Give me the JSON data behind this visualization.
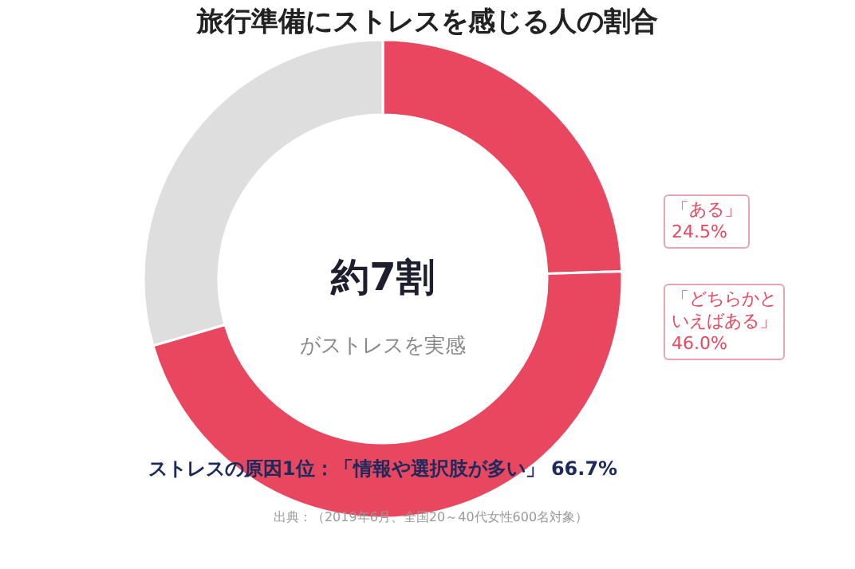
{
  "chart_data": {
    "type": "donut",
    "title": "旅行準備にストレスを感じる人の割合",
    "categories": [
      "「ある」",
      "「どちらかといえばある」",
      null
    ],
    "values": [
      24.5,
      46.0,
      29.5
    ],
    "colors": [
      "#e8475f",
      "#e8475f",
      "#dedede"
    ],
    "value_labels": [
      "24.5%",
      "46.0%",
      null
    ],
    "annotations": [
      "約7割",
      "がストレスを実感",
      "ストレスの原因1位：「情報や選択肢が多い」 66.7%",
      "出典：（2019年6月、全国20～40代女性600名対象）"
    ]
  }
}
